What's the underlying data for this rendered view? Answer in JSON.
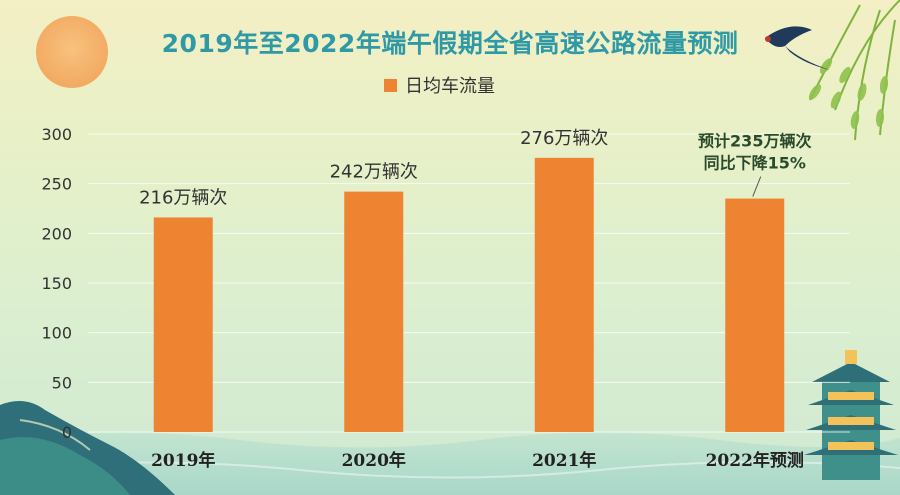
{
  "colors": {
    "bar": "#ee8432",
    "title": "#2f9aa6",
    "grid": "#ffffff",
    "axis_text": "#333333",
    "note": "#2b4a2b"
  },
  "chart_data": {
    "type": "bar",
    "title": "2019年至2022年端午假期全省高速公路流量预测",
    "legend": {
      "position": "top-center"
    },
    "categories": [
      "2019年",
      "2020年",
      "2021年",
      "2022年预测"
    ],
    "series": [
      {
        "name": "日均车流量",
        "values": [
          216,
          242,
          276,
          235
        ]
      }
    ],
    "data_labels": [
      "216万辆次",
      "242万辆次",
      "276万辆次",
      "预计235万辆次\n同比下降15%"
    ],
    "ylim": [
      0,
      300
    ],
    "yticks": [
      0,
      50,
      100,
      150,
      200,
      250,
      300
    ],
    "grid": true,
    "xlabel": "",
    "ylabel": ""
  }
}
